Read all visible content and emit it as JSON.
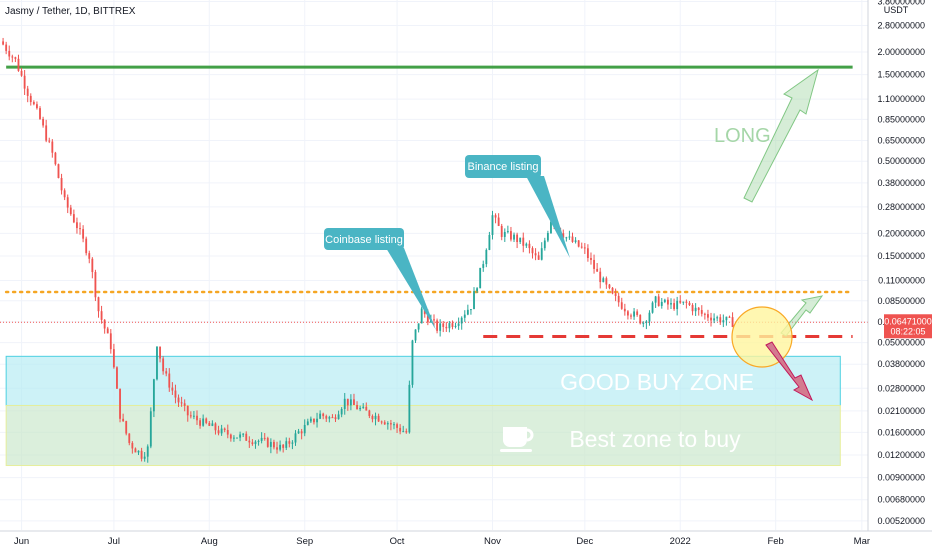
{
  "header": {
    "symbol_line": "Jasmy / Tether, 1D, BITTREX"
  },
  "price_scale": {
    "currency": "USDT",
    "current_price": "0.06471000",
    "countdown": "08:22:05",
    "ticks": [
      "3.80000000",
      "2.80000000",
      "2.00000000",
      "1.50000000",
      "1.10000000",
      "0.85000000",
      "0.65000000",
      "0.50000000",
      "0.38000000",
      "0.28000000",
      "0.20000000",
      "0.15000000",
      "0.11000000",
      "0.08500000",
      "0.06500000",
      "0.05000000",
      "0.03800000",
      "0.02800000",
      "0.02100000",
      "0.01600000",
      "0.01200000",
      "0.00900000",
      "0.00680000",
      "0.00520000"
    ]
  },
  "time_axis": {
    "ticks": [
      "Jun",
      "Jul",
      "Aug",
      "Sep",
      "Oct",
      "Nov",
      "Dec",
      "2022",
      "Feb",
      "Mar"
    ]
  },
  "annotations": {
    "coinbase": "Coinbase listing",
    "binance": "Binance listing",
    "long": "LONG",
    "good_buy_zone": "GOOD BUY ZONE",
    "best_zone": "Best zone to buy"
  },
  "colors": {
    "up": "#26a69a",
    "down": "#ef5350",
    "green_line": "#43a047",
    "orange_dotted": "#f5a623",
    "red_dashed": "#e53935",
    "cyan_zone": "#b2ebf2",
    "green_zone": "#c8e6c9",
    "callout": "#4ab5c4",
    "current_price_bg": "#ef5350"
  },
  "chart_data": {
    "type": "candlestick",
    "title": "Jasmy / Tether, 1D, BITTREX",
    "yscale": "log",
    "ylim": [
      0.0048,
      4.0
    ],
    "xlim": [
      "2021-05-25",
      "2022-03-03"
    ],
    "levels": {
      "resistance_top": 1.65,
      "orange_dotted": 0.095,
      "red_dashed": 0.054,
      "good_buy_zone": [
        0.0225,
        0.042
      ],
      "best_buy_zone": [
        0.0105,
        0.0225
      ]
    },
    "close_series": [
      [
        "2021-05-26",
        2.2
      ],
      [
        "2021-05-30",
        1.8
      ],
      [
        "2021-06-03",
        1.2
      ],
      [
        "2021-06-07",
        0.85
      ],
      [
        "2021-06-11",
        0.55
      ],
      [
        "2021-06-15",
        0.3
      ],
      [
        "2021-06-19",
        0.22
      ],
      [
        "2021-06-23",
        0.15
      ],
      [
        "2021-06-26",
        0.075
      ],
      [
        "2021-06-30",
        0.048
      ],
      [
        "2021-07-03",
        0.02
      ],
      [
        "2021-07-06",
        0.014
      ],
      [
        "2021-07-10",
        0.012
      ],
      [
        "2021-07-12",
        0.013
      ],
      [
        "2021-07-15",
        0.05
      ],
      [
        "2021-07-17",
        0.035
      ],
      [
        "2021-07-21",
        0.025
      ],
      [
        "2021-07-25",
        0.02
      ],
      [
        "2021-07-30",
        0.018
      ],
      [
        "2021-08-05",
        0.016
      ],
      [
        "2021-08-12",
        0.015
      ],
      [
        "2021-08-20",
        0.014
      ],
      [
        "2021-08-25",
        0.013
      ],
      [
        "2021-08-30",
        0.016
      ],
      [
        "2021-09-06",
        0.02
      ],
      [
        "2021-09-10",
        0.019
      ],
      [
        "2021-09-14",
        0.024
      ],
      [
        "2021-09-20",
        0.021
      ],
      [
        "2021-09-26",
        0.019
      ],
      [
        "2021-10-01",
        0.017
      ],
      [
        "2021-10-04",
        0.016
      ],
      [
        "2021-10-06",
        0.05
      ],
      [
        "2021-10-09",
        0.075
      ],
      [
        "2021-10-14",
        0.06
      ],
      [
        "2021-10-20",
        0.065
      ],
      [
        "2021-10-25",
        0.08
      ],
      [
        "2021-10-29",
        0.14
      ],
      [
        "2021-11-01",
        0.25
      ],
      [
        "2021-11-04",
        0.2
      ],
      [
        "2021-11-08",
        0.19
      ],
      [
        "2021-11-12",
        0.17
      ],
      [
        "2021-11-16",
        0.14
      ],
      [
        "2021-11-20",
        0.24
      ],
      [
        "2021-11-25",
        0.19
      ],
      [
        "2021-12-01",
        0.16
      ],
      [
        "2021-12-05",
        0.12
      ],
      [
        "2021-12-10",
        0.09
      ],
      [
        "2021-12-15",
        0.075
      ],
      [
        "2021-12-20",
        0.065
      ],
      [
        "2021-12-24",
        0.085
      ],
      [
        "2021-12-29",
        0.08
      ],
      [
        "2022-01-03",
        0.082
      ],
      [
        "2022-01-08",
        0.072
      ],
      [
        "2022-01-13",
        0.068
      ],
      [
        "2022-01-18",
        0.0647
      ]
    ]
  }
}
